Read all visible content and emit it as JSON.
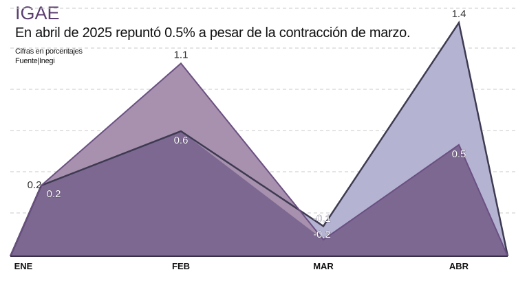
{
  "title": "IGAE",
  "subtitle": "En abril de 2025 repuntó 0.5% a pesar de la contracción de marzo.",
  "notes": {
    "units": "Cifras en porcentajes",
    "source": "Fuente|Inegi"
  },
  "colors": {
    "title": "#5b3e70",
    "series_a_fill": "#b4b4d2",
    "series_b_fill": "#a791ae",
    "overlap_fill": "#7c6891",
    "series_a_line": "#3e3a52",
    "series_b_line": "#6b4f82"
  },
  "chart_data": {
    "type": "area",
    "categories": [
      "ENE",
      "FEB",
      "MAR",
      "ABR"
    ],
    "series": [
      {
        "values": [
          0.2,
          0.6,
          -0.1,
          1.4
        ],
        "labels": [
          "0.2",
          "0.6",
          "-0.1",
          "1.4"
        ]
      },
      {
        "values": [
          0.2,
          1.1,
          -0.2,
          0.5
        ],
        "labels": [
          "0.2",
          "1.1",
          "-0.2",
          "0.5"
        ]
      }
    ],
    "grid": true,
    "legend": "none"
  }
}
